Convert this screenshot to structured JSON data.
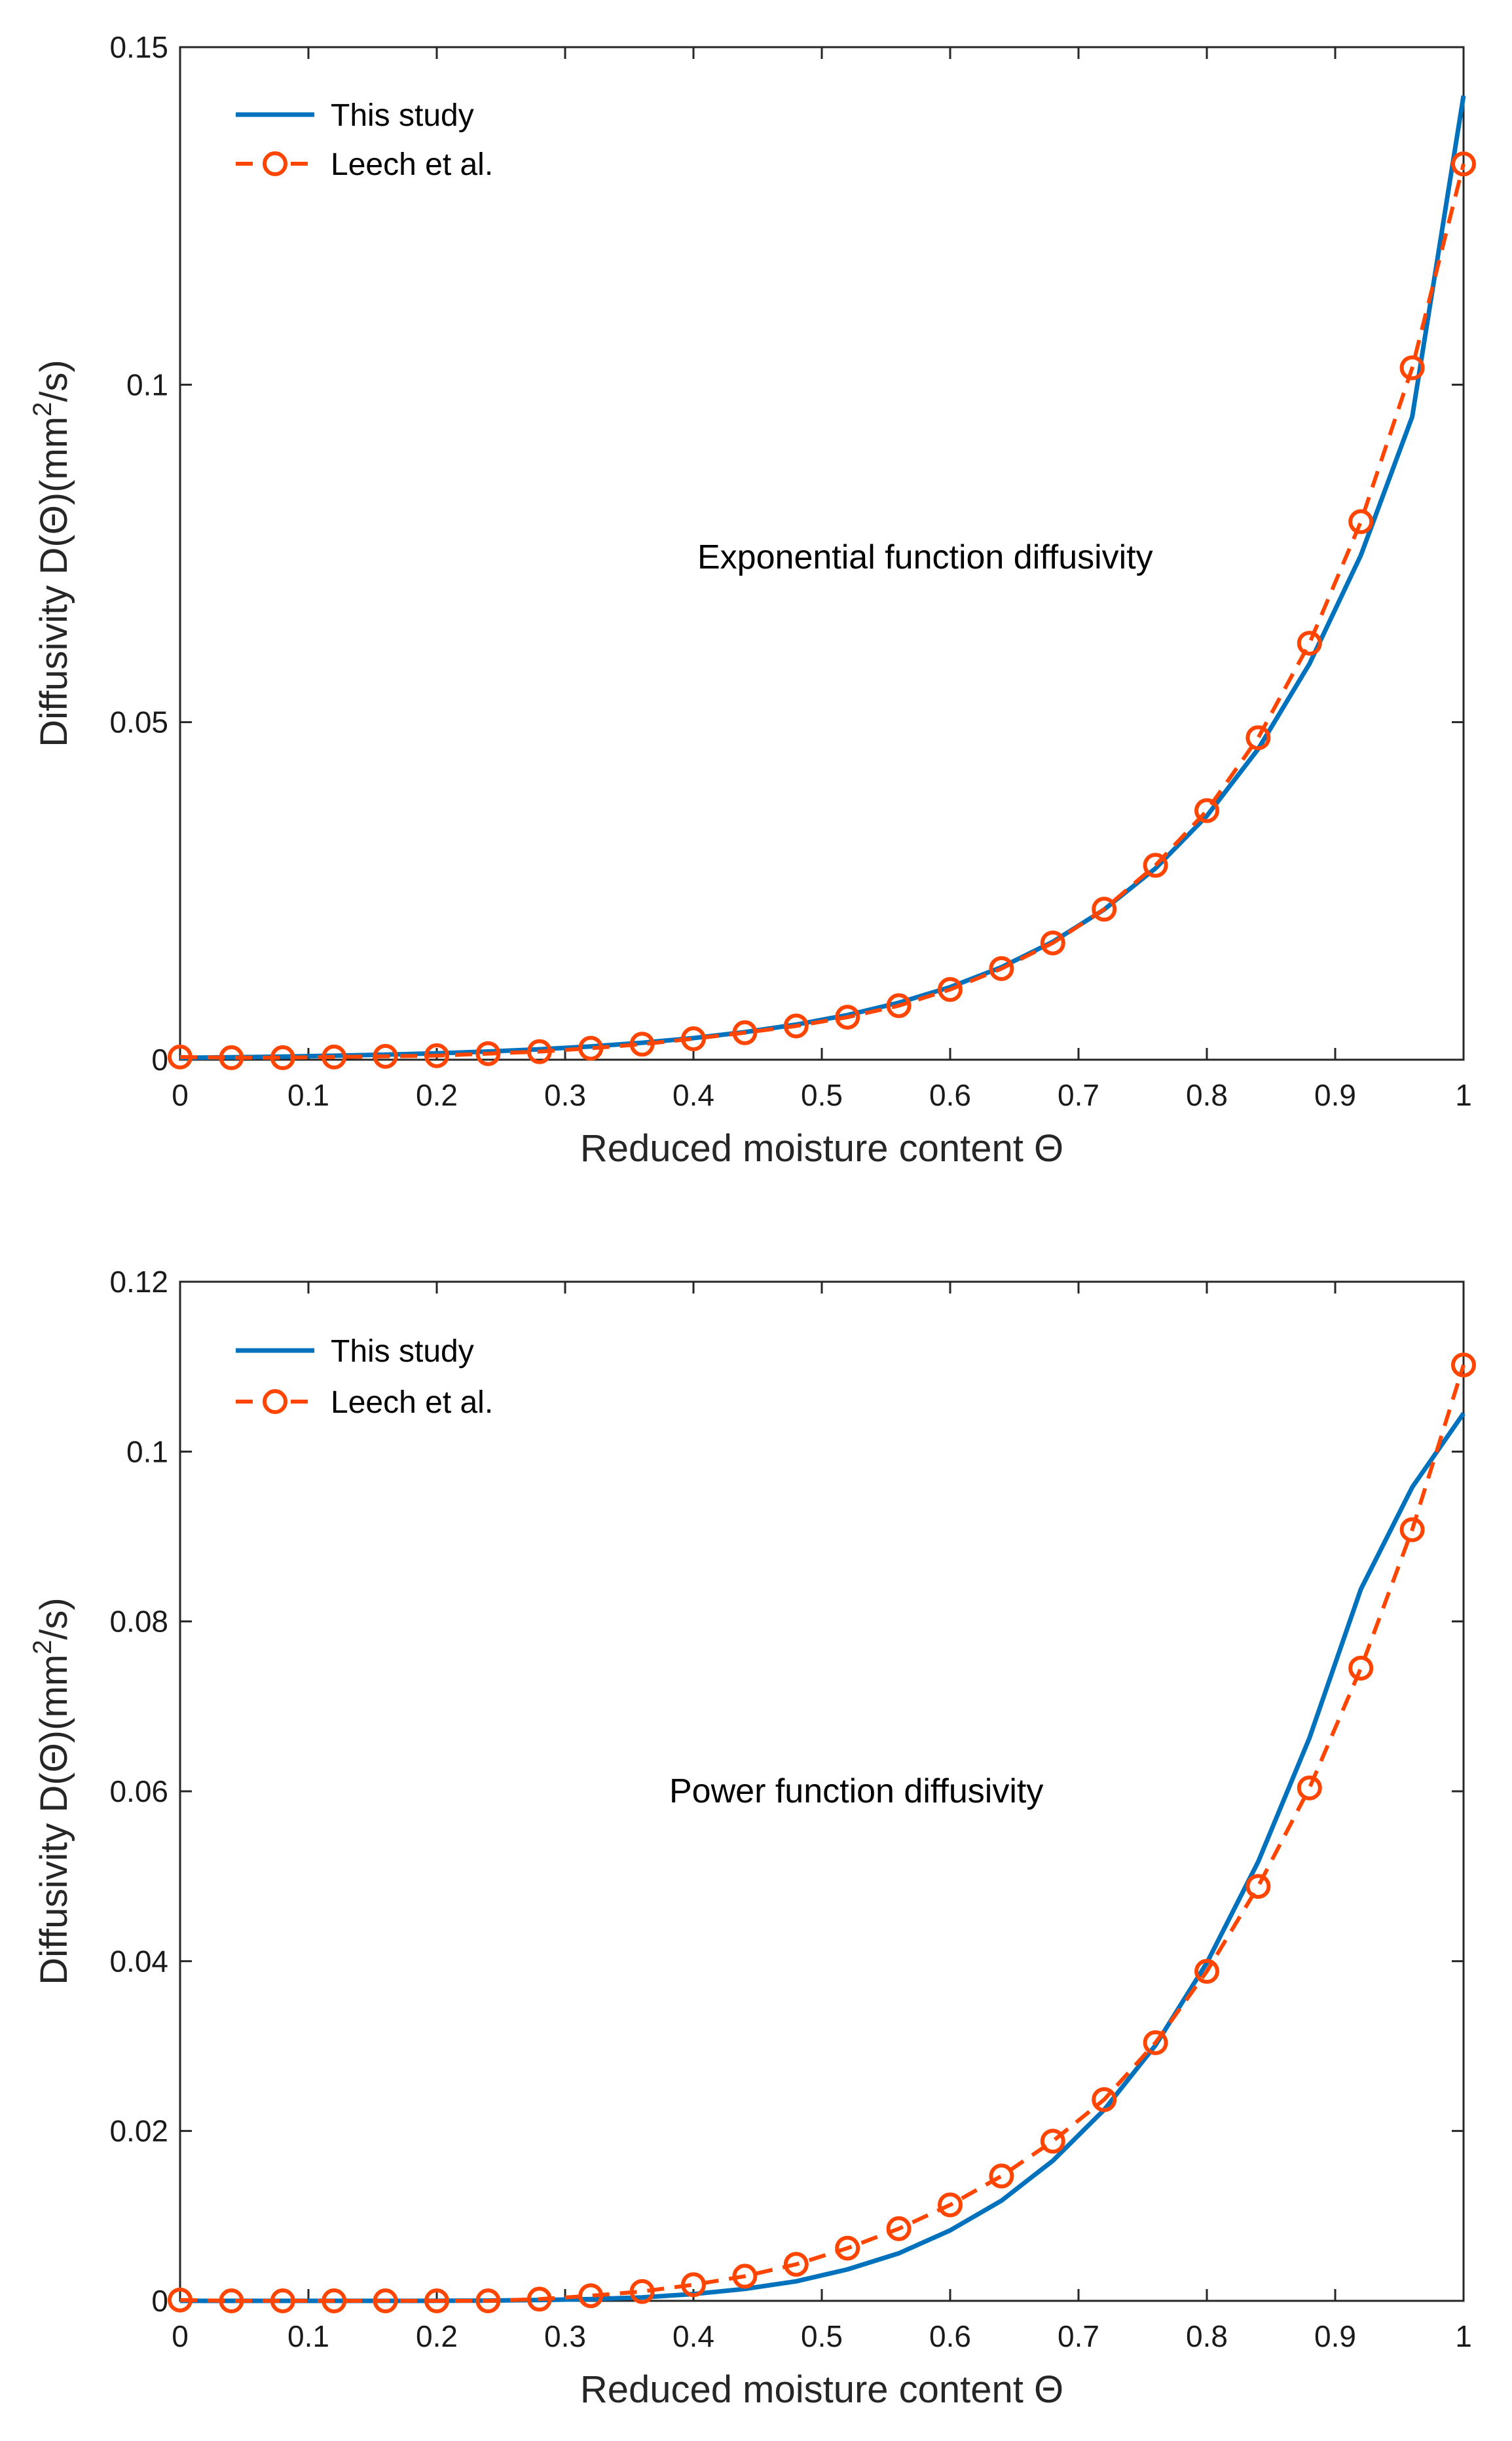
{
  "chart_data": [
    {
      "type": "line",
      "title": "",
      "xlabel": "Reduced moisture content Θ",
      "ylabel_prefix": "Diffusivity D(Θ)(mm",
      "ylabel_sup": "2",
      "ylabel_suffix": "/s)",
      "xlim": [
        0,
        1
      ],
      "ylim": [
        0,
        0.15
      ],
      "xticks": [
        0,
        0.1,
        0.2,
        0.3,
        0.4,
        0.5,
        0.6,
        0.7,
        0.8,
        0.9,
        1
      ],
      "xtick_labels": [
        "0",
        "0.1",
        "0.2",
        "0.3",
        "0.4",
        "0.5",
        "0.6",
        "0.7",
        "0.8",
        "0.9",
        "1"
      ],
      "yticks": [
        0,
        0.05,
        0.1,
        0.15
      ],
      "ytick_labels": [
        "0",
        "0.05",
        "0.1",
        "0.15"
      ],
      "annotation": "Exponential function diffusivity",
      "legend_position": "top-left",
      "series": [
        {
          "name": "This study",
          "color": "#0072BD",
          "style": "solid",
          "x": [
            0,
            0.04,
            0.08,
            0.12,
            0.16,
            0.2,
            0.24,
            0.28,
            0.32,
            0.36,
            0.4,
            0.44,
            0.48,
            0.52,
            0.56,
            0.6,
            0.64,
            0.68,
            0.72,
            0.76,
            0.8,
            0.84,
            0.88,
            0.92,
            0.96,
            1.0
          ],
          "y": [
            0.00028,
            0.00036,
            0.00046,
            0.00059,
            0.00075,
            0.00095,
            0.00121,
            0.00154,
            0.00197,
            0.00251,
            0.0032,
            0.00408,
            0.0052,
            0.00662,
            0.00844,
            0.01075,
            0.0137,
            0.01746,
            0.02225,
            0.02835,
            0.03612,
            0.04603,
            0.05866,
            0.07474,
            0.09524,
            0.1428
          ]
        },
        {
          "name": "Leech et al.",
          "color": "#FF4500",
          "style": "dashed-circle",
          "x": [
            0,
            0.04,
            0.08,
            0.12,
            0.16,
            0.2,
            0.24,
            0.28,
            0.32,
            0.36,
            0.4,
            0.44,
            0.48,
            0.52,
            0.56,
            0.6,
            0.64,
            0.68,
            0.72,
            0.76,
            0.8,
            0.84,
            0.88,
            0.92,
            0.96,
            1.0
          ],
          "y": [
            0.0004,
            0.0003,
            0.0003,
            0.0004,
            0.0005,
            0.0006,
            0.0009,
            0.0012,
            0.0017,
            0.0023,
            0.0031,
            0.004,
            0.005,
            0.0063,
            0.008,
            0.0104,
            0.0135,
            0.0173,
            0.0223,
            0.0288,
            0.0369,
            0.0477,
            0.0617,
            0.0797,
            0.1025,
            0.1327
          ]
        }
      ]
    },
    {
      "type": "line",
      "title": "",
      "xlabel": "Reduced moisture content Θ",
      "ylabel_prefix": "Diffusivity D(Θ)(mm",
      "ylabel_sup": "2",
      "ylabel_suffix": "/s)",
      "xlim": [
        0,
        1
      ],
      "ylim": [
        0,
        0.12
      ],
      "xticks": [
        0,
        0.1,
        0.2,
        0.3,
        0.4,
        0.5,
        0.6,
        0.7,
        0.8,
        0.9,
        1
      ],
      "xtick_labels": [
        "0",
        "0.1",
        "0.2",
        "0.3",
        "0.4",
        "0.5",
        "0.6",
        "0.7",
        "0.8",
        "0.9",
        "1"
      ],
      "yticks": [
        0,
        0.02,
        0.04,
        0.06,
        0.08,
        0.1,
        0.12
      ],
      "ytick_labels": [
        "0",
        "0.02",
        "0.04",
        "0.06",
        "0.08",
        "0.1",
        "0.12"
      ],
      "annotation": "Power function diffusivity",
      "legend_position": "top-left",
      "series": [
        {
          "name": "This study",
          "color": "#0072BD",
          "style": "solid",
          "x": [
            0,
            0.04,
            0.08,
            0.12,
            0.16,
            0.2,
            0.24,
            0.28,
            0.32,
            0.36,
            0.4,
            0.44,
            0.48,
            0.52,
            0.56,
            0.6,
            0.64,
            0.68,
            0.72,
            0.76,
            0.8,
            0.84,
            0.88,
            0.92,
            0.96,
            1.0
          ],
          "y": [
            0,
            0,
            0,
            0,
            0,
            1e-05,
            3e-05,
            9e-05,
            0.0002,
            0.00041,
            0.0008,
            0.0014,
            0.0023,
            0.0037,
            0.0056,
            0.0083,
            0.0118,
            0.0165,
            0.0225,
            0.0301,
            0.0398,
            0.0517,
            0.0663,
            0.0838,
            0.0958,
            0.1045
          ]
        },
        {
          "name": "Leech et al.",
          "color": "#FF4500",
          "style": "dashed-circle",
          "x": [
            0,
            0.04,
            0.08,
            0.12,
            0.16,
            0.2,
            0.24,
            0.28,
            0.32,
            0.36,
            0.4,
            0.44,
            0.48,
            0.52,
            0.56,
            0.6,
            0.64,
            0.68,
            0.72,
            0.76,
            0.8,
            0.84,
            0.88,
            0.92,
            0.96,
            1.0
          ],
          "y": [
            0.0001,
            0,
            0,
            0,
            0,
            0,
            0,
            0.0002,
            0.0006,
            0.0011,
            0.0019,
            0.0029,
            0.0043,
            0.0062,
            0.0085,
            0.0113,
            0.0147,
            0.0188,
            0.0237,
            0.0304,
            0.0388,
            0.0488,
            0.0604,
            0.0745,
            0.0908,
            0.1102
          ]
        }
      ]
    }
  ]
}
